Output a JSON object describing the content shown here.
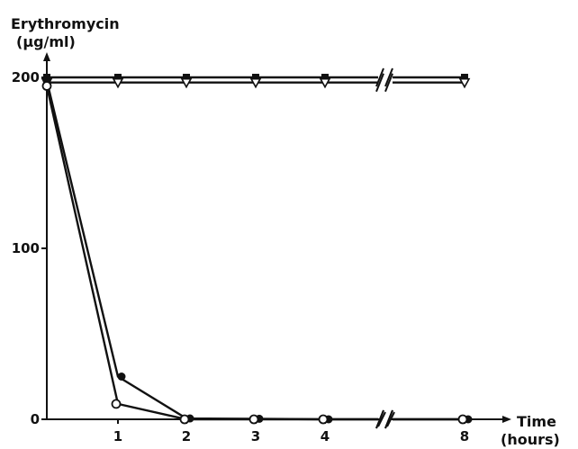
{
  "chart_data": {
    "type": "line",
    "title": "",
    "ylabel_line1": "Erythromycin",
    "ylabel_line2": "(µg/ml)",
    "xlabel_line1": "Time",
    "xlabel_line2": "(hours)",
    "ylim": [
      0,
      200
    ],
    "yticks": [
      0,
      100,
      200
    ],
    "x_categories": [
      "0",
      "1",
      "2",
      "3",
      "4",
      "8"
    ],
    "x_axis_break_between": [
      "4",
      "8"
    ],
    "series": [
      {
        "marker": "filled-square",
        "x": [
          "0",
          "1",
          "2",
          "3",
          "4",
          "8"
        ],
        "values": [
          200,
          200,
          200,
          200,
          200,
          200
        ]
      },
      {
        "marker": "open-triangle",
        "x": [
          "0",
          "1",
          "2",
          "3",
          "4",
          "8"
        ],
        "values": [
          197,
          197,
          197,
          197,
          197,
          197
        ]
      },
      {
        "marker": "filled-circle",
        "x": [
          "0",
          "1",
          "2",
          "3",
          "4",
          "8"
        ],
        "values": [
          198,
          25,
          0.5,
          0.3,
          0,
          0
        ]
      },
      {
        "marker": "open-circle",
        "x": [
          "0",
          "1",
          "2",
          "3",
          "4",
          "8"
        ],
        "values": [
          195,
          9,
          0,
          0,
          0,
          0
        ]
      }
    ],
    "colors": {
      "ink": "#111111",
      "background": "#ffffff"
    }
  }
}
